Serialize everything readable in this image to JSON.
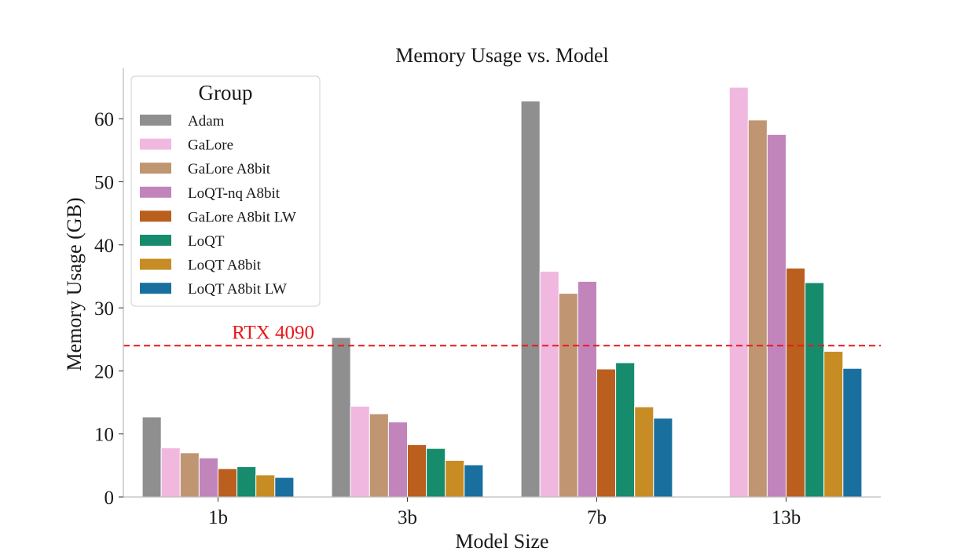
{
  "chart_data": {
    "type": "bar",
    "title": "Memory Usage vs. Model",
    "xlabel": "Model Size",
    "ylabel": "Memory Usage (GB)",
    "categories": [
      "1b",
      "3b",
      "7b",
      "13b"
    ],
    "ylim": [
      0,
      68
    ],
    "yticks": [
      0,
      10,
      20,
      30,
      40,
      50,
      60
    ],
    "grid": false,
    "legend": {
      "title": "Group",
      "placement": "top-left"
    },
    "series": [
      {
        "name": "Adam",
        "color": "#8f8f8f",
        "values": [
          12.7,
          25.3,
          62.8,
          null
        ]
      },
      {
        "name": "GaLore",
        "color": "#f1b8df",
        "values": [
          7.8,
          14.4,
          35.8,
          65.0
        ]
      },
      {
        "name": "GaLore A8bit",
        "color": "#c09572",
        "values": [
          7.0,
          13.2,
          32.3,
          59.8
        ]
      },
      {
        "name": "LoQT-nq A8bit",
        "color": "#c185bb",
        "values": [
          6.2,
          11.9,
          34.2,
          57.5
        ]
      },
      {
        "name": "GaLore A8bit LW",
        "color": "#ba5f1e",
        "values": [
          4.5,
          8.3,
          20.3,
          36.3
        ]
      },
      {
        "name": "LoQT",
        "color": "#168c6c",
        "values": [
          4.8,
          7.7,
          21.3,
          34.0
        ]
      },
      {
        "name": "LoQT A8bit",
        "color": "#c78c24",
        "values": [
          3.5,
          5.8,
          14.3,
          23.1
        ]
      },
      {
        "name": "LoQT A8bit LW",
        "color": "#19709f",
        "values": [
          3.1,
          5.1,
          12.5,
          20.4
        ]
      }
    ],
    "reference_line": {
      "label": "RTX 4090",
      "value": 24,
      "color": "#e8191c"
    }
  }
}
